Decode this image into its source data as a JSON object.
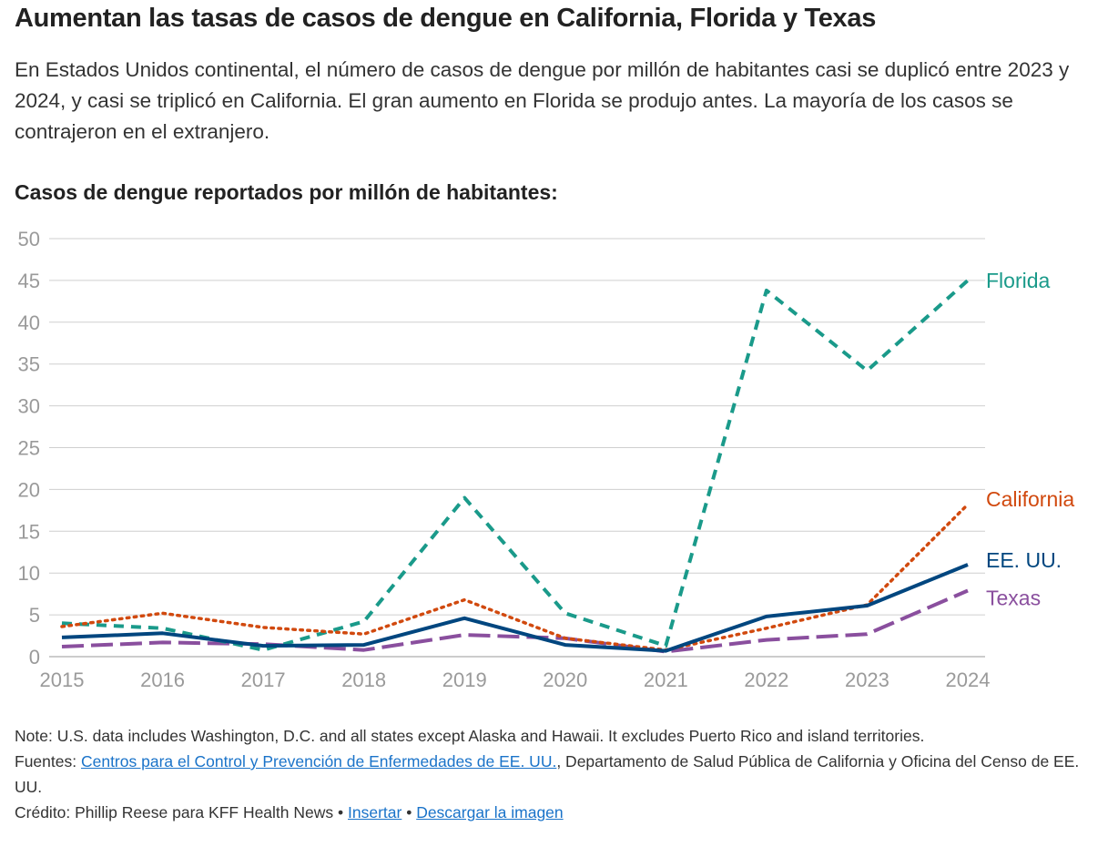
{
  "title": "Aumentan las tasas de casos de dengue en California, Florida y Texas",
  "subtitle": "En Estados Unidos continental, el número de casos de dengue por millón de habitantes casi se duplicó entre 2023 y 2024, y casi se triplicó en California. El gran aumento en Florida se produjo antes. La mayoría de los casos se contrajeron en el extranjero.",
  "chart_heading": "Casos de dengue reportados por millón de habitantes:",
  "chart_data": {
    "type": "line",
    "x": [
      2015,
      2016,
      2017,
      2018,
      2019,
      2020,
      2021,
      2022,
      2023,
      2024
    ],
    "ylim": [
      0,
      50
    ],
    "yticks": [
      0,
      5,
      10,
      15,
      20,
      25,
      30,
      35,
      40,
      45,
      50
    ],
    "grid": true,
    "legend": "direct labels at line ends",
    "series": [
      {
        "name": "Florida",
        "color": "#1a9a8a",
        "dash": "dashed",
        "values": [
          4.0,
          3.4,
          0.8,
          4.2,
          19.0,
          5.2,
          1.3,
          43.8,
          34.2,
          45.0
        ]
      },
      {
        "name": "California",
        "color": "#d1490e",
        "dash": "dotted",
        "values": [
          3.6,
          5.2,
          3.5,
          2.7,
          6.8,
          2.2,
          0.8,
          3.4,
          6.2,
          18.2
        ]
      },
      {
        "name": "EE. UU.",
        "color": "#00467f",
        "dash": "solid",
        "values": [
          2.3,
          2.8,
          1.3,
          1.4,
          4.6,
          1.4,
          0.7,
          4.8,
          6.1,
          11.0
        ]
      },
      {
        "name": "Texas",
        "color": "#8a4f9e",
        "dash": "longdash",
        "values": [
          1.2,
          1.7,
          1.5,
          0.8,
          2.6,
          2.2,
          0.6,
          2.0,
          2.7,
          7.9
        ]
      }
    ]
  },
  "footer": {
    "note": "Note: U.S. data includes Washington, D.C. and all states except Alaska and Hawaii. It excludes Puerto Rico and island territories.",
    "sources_prefix": "Fuentes: ",
    "sources_link": "Centros para el Control y Prevención de Enfermedades de EE. UU.",
    "sources_rest": ", Departamento de Salud Pública de California y Oficina del Censo de EE. UU.",
    "credit": "Crédito: Phillip Reese para KFF Health News • ",
    "embed_link": "Insertar",
    "separator": " • ",
    "download_link": "Descargar la imagen"
  }
}
